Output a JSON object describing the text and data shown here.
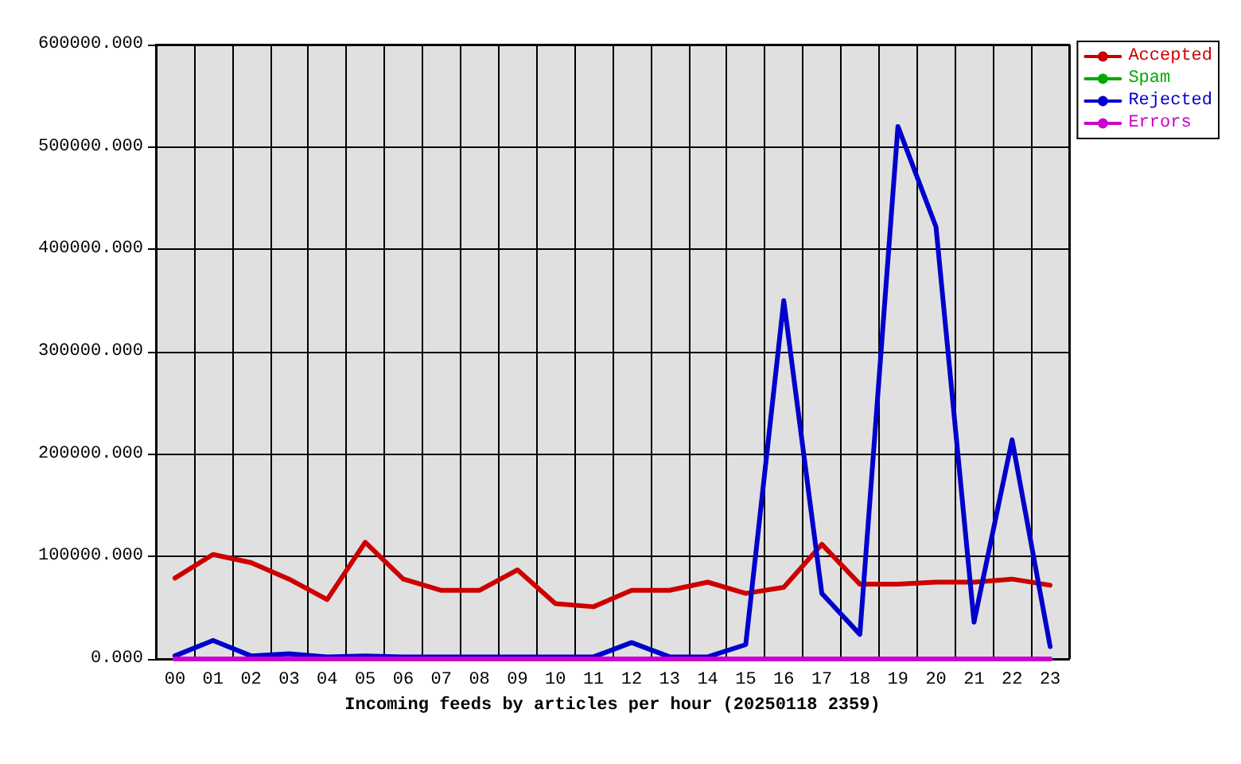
{
  "chart_data": {
    "type": "line",
    "xlabel": "Incoming feeds by articles per hour (20250118 2359)",
    "categories": [
      "00",
      "01",
      "02",
      "03",
      "04",
      "05",
      "06",
      "07",
      "08",
      "09",
      "10",
      "11",
      "12",
      "13",
      "14",
      "15",
      "16",
      "17",
      "18",
      "19",
      "20",
      "21",
      "22",
      "23"
    ],
    "series": [
      {
        "name": "Accepted",
        "color": "#cc0000",
        "values": [
          79000,
          102000,
          94000,
          78000,
          58000,
          114000,
          78000,
          67000,
          67000,
          87000,
          54000,
          51000,
          67000,
          67000,
          75000,
          64000,
          70000,
          112000,
          73000,
          73000,
          75000,
          75000,
          78000,
          72000
        ]
      },
      {
        "name": "Spam",
        "color": "#00aa00",
        "values": [
          null,
          null,
          null,
          null,
          null,
          null,
          null,
          null,
          null,
          null,
          null,
          null,
          null,
          null,
          null,
          null,
          null,
          null,
          null,
          null,
          null,
          null,
          null,
          null
        ]
      },
      {
        "name": "Rejected",
        "color": "#0000cc",
        "values": [
          3000,
          18000,
          3000,
          5000,
          2000,
          3000,
          2000,
          2000,
          2000,
          2000,
          2000,
          2000,
          16000,
          2000,
          2000,
          14000,
          350000,
          64000,
          24000,
          520000,
          422000,
          36000,
          214000,
          12000
        ]
      },
      {
        "name": "Errors",
        "color": "#cc00cc",
        "values": [
          0,
          0,
          0,
          0,
          0,
          0,
          0,
          0,
          0,
          0,
          0,
          0,
          0,
          0,
          0,
          0,
          0,
          0,
          0,
          0,
          0,
          0,
          0,
          0
        ]
      }
    ],
    "ylim": [
      0,
      600000
    ],
    "yticks": [
      {
        "value": 0,
        "label": "0.000"
      },
      {
        "value": 100000,
        "label": "100000.000"
      },
      {
        "value": 200000,
        "label": "200000.000"
      },
      {
        "value": 300000,
        "label": "300000.000"
      },
      {
        "value": 400000,
        "label": "400000.000"
      },
      {
        "value": 500000,
        "label": "500000.000"
      },
      {
        "value": 600000,
        "label": "600000.000"
      }
    ],
    "grid": true,
    "legend": "top right",
    "marker": "none",
    "line_style": "solid"
  }
}
